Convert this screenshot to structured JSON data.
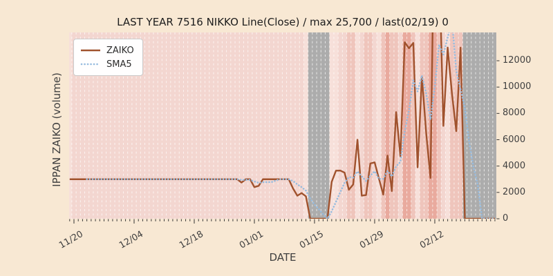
{
  "figure": {
    "background": "#f8e8d3",
    "text_color": "#3f3f3f",
    "title_color": "#1c1c1c"
  },
  "title": "LAST YEAR 7516 NIKKO Line(Close) / max 25,700 / last(02/19) 0",
  "axes": {
    "xlabel": "DATE",
    "ylabel": "IPPAN ZAIKO (volume)",
    "x_ticks": [
      "11/20",
      "12/04",
      "12/18",
      "01/01",
      "01/15",
      "01/29",
      "02/12"
    ],
    "y_ticks": [
      "0",
      "2000",
      "4000",
      "6000",
      "8000",
      "10000",
      "12000"
    ]
  },
  "legend": [
    {
      "label": "ZAIKO",
      "color": "#a0522d",
      "style": "solid"
    },
    {
      "label": "SMA5",
      "color": "#97bcdf",
      "style": "dotted"
    }
  ],
  "chart_data": {
    "type": "line",
    "title": "LAST YEAR 7516 NIKKO Line(Close) / max 25,700 / last(02/19) 0",
    "xlabel": "DATE",
    "ylabel": "IPPAN ZAIKO (volume)",
    "ylim": [
      0,
      14150
    ],
    "y_tick_values": [
      0,
      2000,
      4000,
      6000,
      8000,
      10000,
      12000
    ],
    "x_tick_dates": [
      "11/20",
      "12/04",
      "12/18",
      "01/01",
      "01/15",
      "01/29",
      "02/12"
    ],
    "legend_position": "upper-left",
    "grid": "vertical dashed line per day",
    "gridline_color": "rgba(255,255,255,0.7)",
    "dates": [
      "11/19",
      "11/20",
      "11/21",
      "11/22",
      "11/23",
      "11/24",
      "11/25",
      "11/26",
      "11/27",
      "11/28",
      "11/29",
      "11/30",
      "12/01",
      "12/02",
      "12/03",
      "12/04",
      "12/05",
      "12/06",
      "12/07",
      "12/08",
      "12/09",
      "12/10",
      "12/11",
      "12/12",
      "12/13",
      "12/14",
      "12/15",
      "12/16",
      "12/17",
      "12/18",
      "12/19",
      "12/20",
      "12/21",
      "12/22",
      "12/23",
      "12/24",
      "12/25",
      "12/26",
      "12/27",
      "12/28",
      "12/29",
      "12/30",
      "12/31",
      "01/01",
      "01/02",
      "01/03",
      "01/04",
      "01/05",
      "01/06",
      "01/07",
      "01/08",
      "01/09",
      "01/10",
      "01/11",
      "01/12",
      "01/13",
      "01/14",
      "01/15",
      "01/16",
      "01/17",
      "01/18",
      "01/19",
      "01/20",
      "01/21",
      "01/22",
      "01/23",
      "01/24",
      "01/25",
      "01/26",
      "01/27",
      "01/28",
      "01/29",
      "01/30",
      "01/31",
      "02/01",
      "02/02",
      "02/03",
      "02/04",
      "02/05",
      "02/06",
      "02/07",
      "02/08",
      "02/09",
      "02/10",
      "02/11",
      "02/12",
      "02/13",
      "02/14",
      "02/15",
      "02/16",
      "02/17",
      "02/18",
      "02/19",
      "02/20",
      "02/21",
      "02/22",
      "02/23",
      "02/24",
      "02/25",
      "02/26"
    ],
    "series": [
      {
        "name": "ZAIKO",
        "color": "#a0522d",
        "style": "solid",
        "values": [
          3000,
          3000,
          3000,
          3000,
          3000,
          3000,
          3000,
          3000,
          3000,
          3000,
          3000,
          3000,
          3000,
          3000,
          3000,
          3000,
          3000,
          3000,
          3000,
          3000,
          3000,
          3000,
          3000,
          3000,
          3000,
          3000,
          3000,
          3000,
          3000,
          3000,
          3000,
          3000,
          3000,
          3000,
          3000,
          3000,
          3000,
          3000,
          3000,
          3000,
          2750,
          3000,
          3000,
          2400,
          2500,
          3000,
          3000,
          3000,
          3000,
          3000,
          3000,
          3000,
          2300,
          1750,
          1950,
          1700,
          0,
          0,
          0,
          0,
          0,
          2800,
          3650,
          3660,
          3500,
          2200,
          2600,
          6000,
          1750,
          1800,
          4200,
          4280,
          3050,
          1830,
          4800,
          2100,
          8100,
          4750,
          13400,
          12950,
          13350,
          3900,
          10800,
          6500,
          3100,
          25700,
          20000,
          7050,
          13000,
          9500,
          6650,
          13000,
          0,
          0,
          0,
          0,
          0,
          0,
          0,
          0
        ]
      },
      {
        "name": "SMA5",
        "color": "#97bcdf",
        "style": "dotted",
        "values": [
          null,
          null,
          null,
          null,
          3000,
          3000,
          3000,
          3000,
          3000,
          3000,
          3000,
          3000,
          3000,
          3000,
          3000,
          3000,
          3000,
          3000,
          3000,
          3000,
          3000,
          3000,
          3000,
          3000,
          3000,
          3000,
          3000,
          3000,
          3000,
          3000,
          3000,
          3000,
          3000,
          3000,
          3000,
          3000,
          3000,
          3000,
          3000,
          3000,
          2950,
          2950,
          2950,
          2830,
          2730,
          2780,
          2780,
          2780,
          2900,
          3000,
          3000,
          3000,
          2860,
          2610,
          2400,
          2140,
          1540,
          1080,
          730,
          340,
          0,
          560,
          1290,
          2022,
          2722,
          3162,
          3122,
          3592,
          3210,
          2870,
          3270,
          3606,
          3016,
          3032,
          3632,
          3212,
          3976,
          4316,
          6630,
          8260,
          10510,
          9670,
          10880,
          9500,
          7530,
          10000,
          13220,
          12470,
          13770,
          15050,
          11240,
          9840,
          8430,
          5830,
          3930,
          2600,
          0,
          0,
          0,
          0
        ]
      }
    ],
    "bands": "LBBBBBBBBBBBBBBBBBBBBBBBBBBBBBBBBBBBBBBBBBBBBBBBBBBBBBBLGGGGGLLBBMMLBMMBLMDMMBDDMLMMDDMBLMMMGGGGGGGG",
    "band_tones": {
      "B": "#f3d6d0",
      "L": "#f7e0da",
      "M": "#efc5bc",
      "D": "#e9aa9e",
      "G": "#acacac"
    },
    "band_notes": "gray bands = no-data periods (01/14-01/18 and 02/19 onward)"
  }
}
